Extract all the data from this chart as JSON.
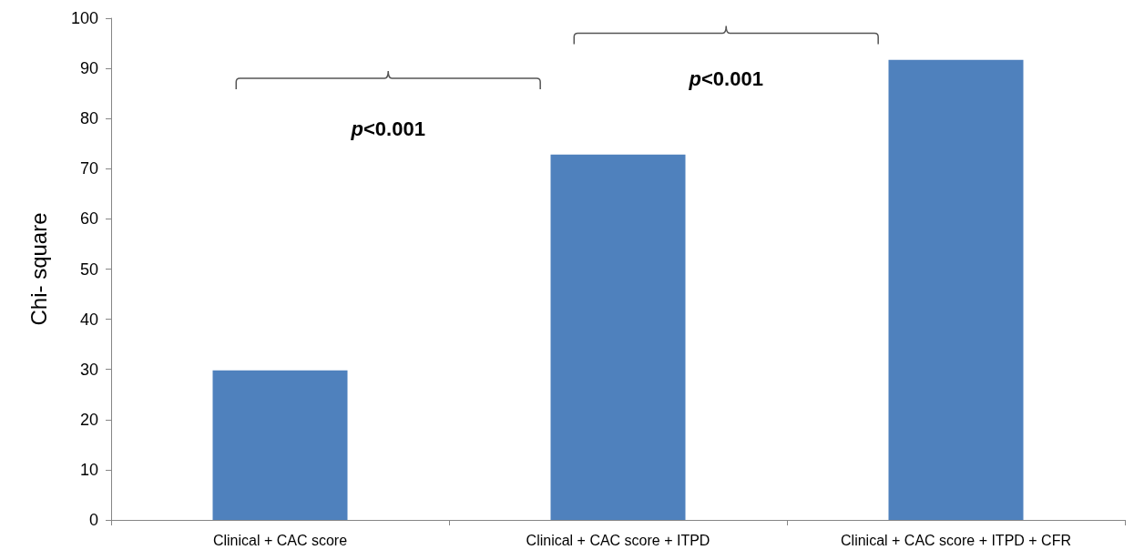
{
  "chart_data": {
    "type": "bar",
    "ylabel": "Chi- square",
    "categories": [
      "Clinical + CAC score",
      "Clinical + CAC score + ITPD",
      "Clinical + CAC score + ITPD + CFR"
    ],
    "values": [
      29.8,
      72.8,
      91.7
    ],
    "color": "#4f81bd",
    "ylim": [
      0,
      100
    ],
    "yticks": [
      0,
      10,
      20,
      30,
      40,
      50,
      60,
      70,
      80,
      90,
      100
    ],
    "grid": false,
    "annotations": [
      "p<0.001",
      "p<0.001"
    ]
  }
}
